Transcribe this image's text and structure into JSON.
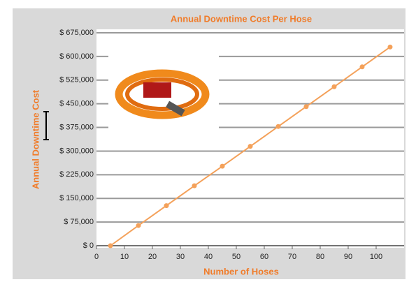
{
  "chart_data": {
    "type": "line",
    "title": "Annual Downtime Cost Per Hose",
    "x_label": "Number of Hoses",
    "y_label": "Annual Downtime Cost",
    "x": [
      5,
      15,
      25,
      35,
      45,
      55,
      65,
      75,
      85,
      95,
      105
    ],
    "series": [
      {
        "color": "#f4a15a",
        "values": [
          0,
          64000,
          127000,
          190000,
          252000,
          315000,
          378000,
          441000,
          504000,
          567000,
          630000
        ]
      }
    ],
    "xlim": [
      0,
      110
    ],
    "xticks": [
      0,
      10,
      20,
      30,
      40,
      50,
      60,
      70,
      80,
      90,
      100
    ],
    "ylim": [
      0,
      675000
    ],
    "yticks": [
      {
        "value": 0,
        "label": "$ 0"
      },
      {
        "value": 75000,
        "label": "$ 75,000"
      },
      {
        "value": 150000,
        "label": "$ 150,000"
      },
      {
        "value": 225000,
        "label": "$ 225,000"
      },
      {
        "value": 300000,
        "label": "$ 300,000"
      },
      {
        "value": 375000,
        "label": "$ 375,000"
      },
      {
        "value": 450000,
        "label": "$ 450,000"
      },
      {
        "value": 525000,
        "label": "$ 525,000"
      },
      {
        "value": 600000,
        "label": "$ 600,000"
      },
      {
        "value": 675000,
        "label": "$ 675,000"
      }
    ],
    "grid": true
  }
}
